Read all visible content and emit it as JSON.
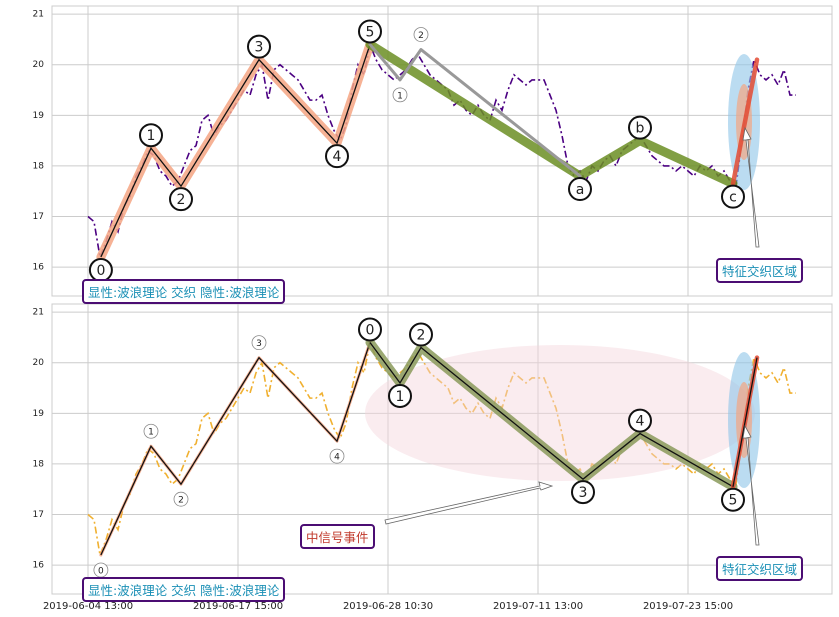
{
  "chart_data": [
    {
      "type": "line",
      "x": [
        0,
        2,
        4,
        6,
        8,
        10,
        12,
        14,
        16,
        18,
        20,
        22,
        24,
        26,
        28,
        30,
        32,
        34,
        36,
        38,
        40,
        42,
        44,
        46,
        48,
        50,
        52,
        54,
        56,
        58,
        60,
        62,
        64,
        66,
        68,
        70,
        72,
        74,
        76,
        78,
        80,
        82,
        84,
        86,
        88,
        90,
        92,
        94,
        96,
        98,
        100,
        102,
        104,
        106,
        108,
        110,
        112,
        114,
        116,
        118,
        120,
        122,
        124,
        126,
        128,
        130,
        132,
        134,
        136,
        138,
        140,
        142,
        144,
        146,
        148,
        150,
        152,
        154,
        156,
        158,
        160,
        162,
        164,
        166,
        168,
        170,
        172,
        174,
        176,
        178,
        180,
        182,
        184,
        186,
        188,
        190,
        192,
        194,
        196,
        198,
        200,
        202,
        204,
        206,
        208,
        210,
        212,
        214,
        216,
        218,
        220,
        222,
        224,
        226,
        228,
        230,
        232,
        234,
        236
      ],
      "series": [
        {
          "color": "#4b0082",
          "values": [
            17.0,
            16.9,
            16.2,
            16.5,
            16.9,
            16.7,
            17.2,
            17.4,
            17.8,
            18.0,
            18.3,
            18.2,
            17.9,
            17.8,
            17.6,
            17.7,
            18.0,
            18.3,
            18.4,
            18.9,
            19.0,
            18.6,
            18.8,
            18.9,
            19.1,
            19.3,
            19.5,
            19.4,
            19.8,
            20.0,
            19.3,
            19.9,
            20.0,
            19.9,
            19.8,
            19.7,
            19.5,
            19.3,
            19.3,
            19.4,
            19.0,
            18.7,
            18.5,
            18.8,
            19.5,
            20.0,
            19.8,
            20.4,
            20.1,
            19.9,
            19.8,
            19.7,
            19.8,
            19.9,
            20.1,
            20.2,
            20.0,
            19.8,
            19.7,
            19.6,
            19.5,
            19.2,
            19.3,
            19.1,
            19.0,
            19.2,
            19.0,
            18.9,
            19.3,
            19.1,
            19.5,
            19.8,
            19.7,
            19.6,
            19.7,
            19.7,
            19.7,
            19.4,
            19.1,
            18.6,
            18.0,
            17.8,
            17.9,
            17.7,
            18.0,
            17.9,
            18.1,
            18.2,
            18.0,
            18.3,
            18.4,
            18.5,
            18.6,
            18.4,
            18.2,
            18.1,
            18.0,
            18.0,
            17.9,
            18.0,
            17.9,
            17.8,
            18.0,
            17.9,
            18.0,
            17.8,
            17.9,
            17.7,
            17.6,
            18.5,
            19.5,
            20.1,
            19.8,
            19.7,
            19.8,
            19.6,
            19.9,
            19.4,
            19.4
          ]
        }
      ],
      "waves": [
        {
          "color": "#f4a582",
          "style": "thick",
          "core": true,
          "label_style": "large",
          "x": [
            4.3,
            21,
            31,
            57,
            83,
            94
          ],
          "values": [
            16.2,
            18.35,
            17.6,
            20.1,
            18.45,
            20.4
          ],
          "labels": [
            "0",
            "1",
            "2",
            "3",
            "4",
            "5"
          ]
        },
        {
          "color": "#6b8e23",
          "style": "thick",
          "core": false,
          "label_style": "large",
          "x": [
            94,
            164,
            184,
            215
          ],
          "values": [
            20.4,
            17.8,
            18.5,
            17.65
          ],
          "labels": [
            null,
            "a",
            "b",
            "c"
          ]
        },
        {
          "color": "#999999",
          "style": "thin",
          "core": false,
          "label_style": "small",
          "x": [
            94,
            104,
            111,
            164
          ],
          "values": [
            20.4,
            19.7,
            20.3,
            17.8
          ],
          "labels": [
            null,
            "1",
            "2",
            null
          ]
        },
        {
          "color": "#e34a33",
          "style": "medium",
          "core": false,
          "x": [
            215,
            223
          ],
          "values": [
            17.65,
            20.1
          ]
        }
      ],
      "ylim": [
        15.43,
        21.16
      ],
      "yticks": [
        16,
        17,
        18,
        19,
        20,
        21
      ],
      "xlim": [
        -12,
        248
      ],
      "grid": true,
      "annotations": {
        "pattern": "显性:波浪理论 交织 隐性:波浪理论",
        "zone": "特征交织区域"
      }
    },
    {
      "type": "line",
      "x": [
        0,
        2,
        4,
        6,
        8,
        10,
        12,
        14,
        16,
        18,
        20,
        22,
        24,
        26,
        28,
        30,
        32,
        34,
        36,
        38,
        40,
        42,
        44,
        46,
        48,
        50,
        52,
        54,
        56,
        58,
        60,
        62,
        64,
        66,
        68,
        70,
        72,
        74,
        76,
        78,
        80,
        82,
        84,
        86,
        88,
        90,
        92,
        94,
        96,
        98,
        100,
        102,
        104,
        106,
        108,
        110,
        112,
        114,
        116,
        118,
        120,
        122,
        124,
        126,
        128,
        130,
        132,
        134,
        136,
        138,
        140,
        142,
        144,
        146,
        148,
        150,
        152,
        154,
        156,
        158,
        160,
        162,
        164,
        166,
        168,
        170,
        172,
        174,
        176,
        178,
        180,
        182,
        184,
        186,
        188,
        190,
        192,
        194,
        196,
        198,
        200,
        202,
        204,
        206,
        208,
        210,
        212,
        214,
        216,
        218,
        220,
        222,
        224,
        226,
        228,
        230,
        232,
        234,
        236
      ],
      "series": [
        {
          "color": "#f0b030",
          "values": [
            17.0,
            16.9,
            16.2,
            16.5,
            16.9,
            16.7,
            17.2,
            17.4,
            17.8,
            18.0,
            18.3,
            18.2,
            17.9,
            17.8,
            17.6,
            17.7,
            18.0,
            18.3,
            18.4,
            18.9,
            19.0,
            18.6,
            18.8,
            18.9,
            19.1,
            19.3,
            19.5,
            19.4,
            19.8,
            20.0,
            19.3,
            19.9,
            20.0,
            19.9,
            19.8,
            19.7,
            19.5,
            19.3,
            19.3,
            19.4,
            19.0,
            18.7,
            18.5,
            18.8,
            19.5,
            20.0,
            19.8,
            20.4,
            20.1,
            19.9,
            19.8,
            19.7,
            19.8,
            19.9,
            20.1,
            20.2,
            20.0,
            19.8,
            19.7,
            19.6,
            19.5,
            19.2,
            19.3,
            19.1,
            19.0,
            19.2,
            19.0,
            18.9,
            19.3,
            19.1,
            19.5,
            19.8,
            19.7,
            19.6,
            19.7,
            19.7,
            19.7,
            19.4,
            19.1,
            18.6,
            18.0,
            17.8,
            17.9,
            17.7,
            18.0,
            17.9,
            18.1,
            18.2,
            18.0,
            18.3,
            18.4,
            18.5,
            18.6,
            18.4,
            18.2,
            18.1,
            18.0,
            18.0,
            17.9,
            18.0,
            17.9,
            17.8,
            18.0,
            17.9,
            18.0,
            17.8,
            17.9,
            17.7,
            17.6,
            18.5,
            19.5,
            20.1,
            19.8,
            19.7,
            19.8,
            19.6,
            19.9,
            19.4,
            19.4
          ]
        }
      ],
      "waves": [
        {
          "color": "#f4a582",
          "style": "thin",
          "core": true,
          "label_style": "small",
          "x": [
            4.3,
            21,
            31,
            57,
            83,
            94
          ],
          "values": [
            16.2,
            18.35,
            17.6,
            20.1,
            18.45,
            20.4
          ],
          "labels": [
            "0",
            "1",
            "2",
            "3",
            "4",
            null
          ]
        },
        {
          "color": "#8a9a5b",
          "style": "thick",
          "core": true,
          "label_style": "large",
          "x": [
            94,
            104,
            111,
            165,
            184,
            215
          ],
          "values": [
            20.4,
            19.6,
            20.3,
            17.7,
            18.6,
            17.55
          ],
          "labels": [
            "0",
            "1",
            "2",
            "3",
            "4",
            "5"
          ]
        },
        {
          "color": "#e34a33",
          "style": "medium",
          "core": true,
          "x": [
            215,
            223
          ],
          "values": [
            17.55,
            20.1
          ]
        }
      ],
      "ylim": [
        15.43,
        21.16
      ],
      "yticks": [
        16,
        17,
        18,
        19,
        20,
        21
      ],
      "xlim": [
        -12,
        248
      ],
      "grid": true,
      "xticks": [
        {
          "value": 0,
          "label": "2019-06-04 13:00"
        },
        {
          "value": 50,
          "label": "2019-06-17 15:00"
        },
        {
          "value": 100,
          "label": "2019-06-28 10:30"
        },
        {
          "value": 150,
          "label": "2019-07-11 13:00"
        },
        {
          "value": 200,
          "label": "2019-07-23 15:00"
        }
      ],
      "annotations": {
        "pattern": "显性:波浪理论 交织 隐性:波浪理论",
        "zone": "特征交织区域",
        "signal": "中信号事件"
      }
    }
  ]
}
